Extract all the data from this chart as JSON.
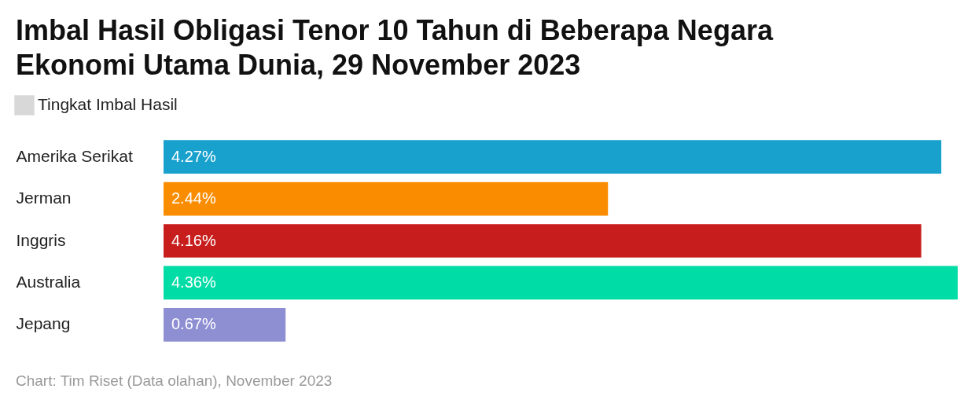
{
  "chart_data": {
    "type": "bar",
    "orientation": "horizontal",
    "title": "Imbal Hasil Obligasi Tenor 10 Tahun di Beberapa Negara Ekonomi Utama Dunia, 29 November 2023",
    "categories": [
      "Amerika Serikat",
      "Jerman",
      "Inggris",
      "Australia",
      "Jepang"
    ],
    "series": [
      {
        "name": "Tingkat Imbal Hasil",
        "values": [
          4.27,
          2.44,
          4.16,
          4.36,
          0.67
        ],
        "value_labels": [
          "4.27%",
          "2.44%",
          "4.16%",
          "4.36%",
          "0.67%"
        ]
      }
    ],
    "colors": [
      "#18a1cd",
      "#fa8c00",
      "#c71e1d",
      "#00dca6",
      "#8e8ed3"
    ],
    "legend": "top left",
    "annotations": [
      "Chart: Tim Riset (Data olahan), November 2023"
    ]
  }
}
